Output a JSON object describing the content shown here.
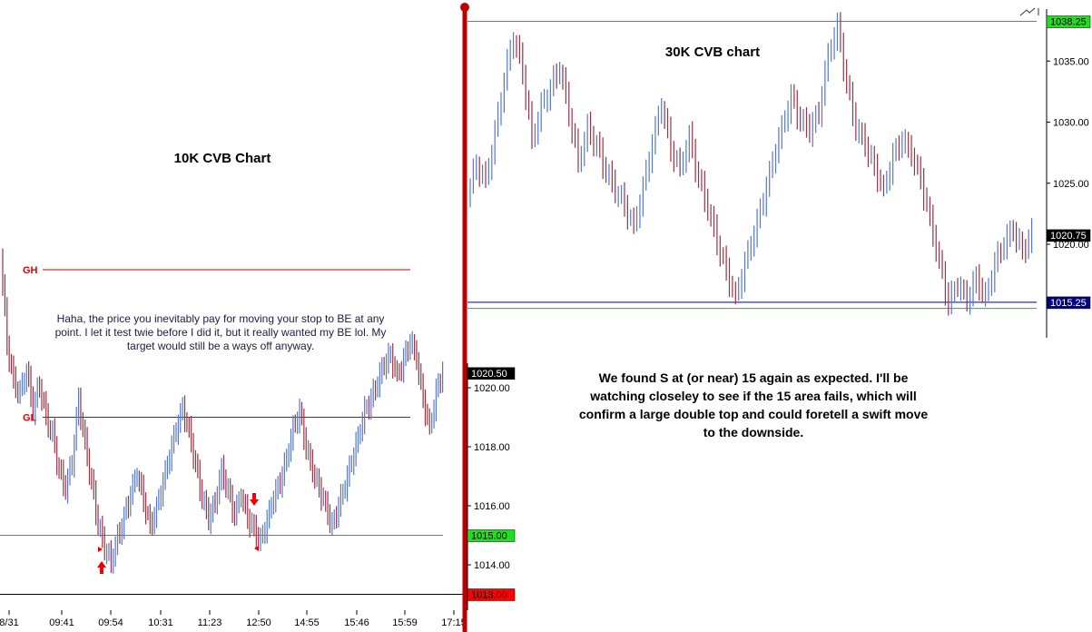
{
  "chart_data": [
    {
      "type": "bar",
      "subtype": "ohlc",
      "title": "10K CVB Chart",
      "x_tick_labels": [
        "8/31",
        "09:41",
        "09:54",
        "10:31",
        "11:23",
        "12:50",
        "14:55",
        "15:46",
        "15:59",
        "17:15"
      ],
      "y_tick_labels": [
        "1020.00",
        "1018.00",
        "1016.00",
        "1014.00"
      ],
      "ylim": [
        1012.5,
        1024.8
      ],
      "levels": [
        {
          "label": "GH",
          "value": 1024.0,
          "color": "#cc0000"
        },
        {
          "label": "GL",
          "value": 1019.0,
          "color": "#cc0000"
        },
        {
          "label": "",
          "value": 1015.0,
          "color": "#00cc00"
        },
        {
          "label": "",
          "value": 1013.0,
          "color": "#000000"
        }
      ],
      "price_tags": [
        {
          "text": "1020.50",
          "value": 1020.5,
          "bg": "#000000",
          "fg": "#ffffff"
        },
        {
          "text": "1015.00",
          "value": 1015.0,
          "bg": "#22dd22",
          "fg": "#000000"
        },
        {
          "text": "1013.00",
          "value": 1013.0,
          "bg": "#ff0000",
          "fg": "#000000"
        }
      ],
      "series_closes": [
        1024.5,
        1021.5,
        1020.2,
        1019.8,
        1020.6,
        1019.3,
        1020.1,
        1019.0,
        1018.4,
        1017.2,
        1016.6,
        1017.5,
        1019.6,
        1018.1,
        1016.8,
        1015.4,
        1014.6,
        1014.1,
        1014.9,
        1015.6,
        1016.4,
        1017.1,
        1016.2,
        1015.3,
        1015.9,
        1016.8,
        1017.7,
        1018.6,
        1019.3,
        1018.5,
        1017.4,
        1016.3,
        1015.6,
        1016.1,
        1017.2,
        1016.5,
        1015.7,
        1016.4,
        1015.6,
        1015.2,
        1014.8,
        1015.5,
        1016.3,
        1016.8,
        1017.6,
        1018.6,
        1019.2,
        1018.0,
        1017.2,
        1016.6,
        1016.0,
        1015.3,
        1016.0,
        1016.7,
        1017.5,
        1018.3,
        1019.2,
        1019.6,
        1020.2,
        1020.8,
        1021.1,
        1020.4,
        1020.9,
        1021.6,
        1021.0,
        1019.6,
        1018.6,
        1019.8,
        1020.6
      ],
      "annotation": "Haha, the price you inevitably pay for moving your stop to BE at any point. I let it test twie before I did it, but it really wanted my BE lol. My target would still be a ways off anyway."
    },
    {
      "type": "bar",
      "subtype": "ohlc",
      "title": "30K CVB chart",
      "y_tick_labels": [
        "1035.00",
        "1030.00",
        "1025.00",
        "1020.00"
      ],
      "ylim": [
        1012.5,
        1039.5
      ],
      "levels": [
        {
          "label": "",
          "value": 1038.25,
          "color": "#00cc00"
        },
        {
          "label": "",
          "value": 1015.25,
          "color": "#000080"
        },
        {
          "label": "",
          "value": 1014.75,
          "color": "#00cc00"
        }
      ],
      "price_tags": [
        {
          "text": "1038.25",
          "value": 1038.25,
          "bg": "#22dd22",
          "fg": "#000000"
        },
        {
          "text": "1020.75",
          "value": 1020.75,
          "bg": "#000000",
          "fg": "#ffffff"
        },
        {
          "text": "1015.25",
          "value": 1015.25,
          "bg": "#000080",
          "fg": "#ffffff"
        }
      ],
      "series_closes": [
        1024.0,
        1026.5,
        1025.2,
        1029.0,
        1033.5,
        1037.0,
        1034.2,
        1028.5,
        1031.2,
        1032.8,
        1034.5,
        1030.8,
        1026.7,
        1029.4,
        1028.1,
        1026.0,
        1024.5,
        1023.2,
        1021.4,
        1024.6,
        1028.3,
        1031.5,
        1027.8,
        1026.2,
        1028.7,
        1025.4,
        1023.0,
        1020.2,
        1017.8,
        1015.6,
        1018.4,
        1020.9,
        1023.7,
        1026.8,
        1029.5,
        1032.0,
        1030.2,
        1029.4,
        1030.8,
        1035.5,
        1037.8,
        1033.2,
        1029.6,
        1028.2,
        1026.3,
        1024.4,
        1027.2,
        1028.6,
        1027.4,
        1025.3,
        1022.0,
        1018.6,
        1015.2,
        1016.8,
        1015.4,
        1017.2,
        1015.6,
        1018.4,
        1020.1,
        1021.2,
        1019.4,
        1020.8
      ]
    }
  ],
  "annotations": {
    "left_title": "10K CVB Chart",
    "right_title": "30K CVB chart",
    "left_note": "Haha, the price you inevitably pay for moving your stop to BE at any point. I let it test twie before I did it, but it really wanted my BE lol. My target would still be a ways off anyway.",
    "right_note": "We found S at (or near) 15 again as expected. I'll be watching closeley to see if the 15 area fails, which will confirm a large double top and could foretell a swift move to the downside."
  },
  "colors": {
    "up_bar": "#5577cc",
    "down_bar": "#993344",
    "separator": "#bb0000"
  }
}
